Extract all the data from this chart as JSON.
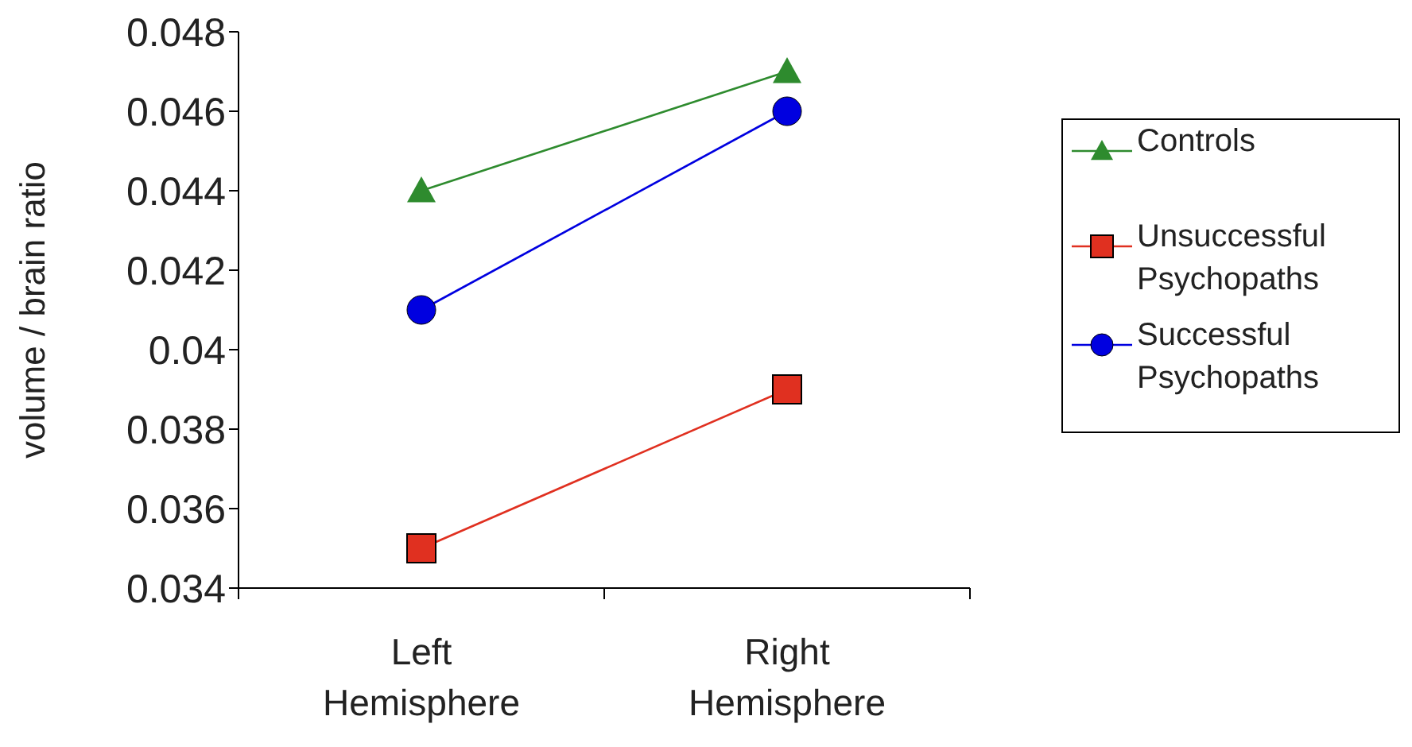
{
  "chart_data": {
    "type": "line",
    "ylabel": "volume / brain ratio",
    "categories": [
      "Left Hemisphere",
      "Right Hemisphere"
    ],
    "ylim": [
      0.034,
      0.048
    ],
    "yticks": [
      {
        "value": 0.034,
        "label": "0.034"
      },
      {
        "value": 0.036,
        "label": "0.036"
      },
      {
        "value": 0.038,
        "label": "0.038"
      },
      {
        "value": 0.04,
        "label": "0.04"
      },
      {
        "value": 0.042,
        "label": "0.042"
      },
      {
        "value": 0.044,
        "label": "0.044"
      },
      {
        "value": 0.046,
        "label": "0.046"
      },
      {
        "value": 0.048,
        "label": "0.048"
      }
    ],
    "series": [
      {
        "name": "Controls",
        "color": "#2e8b2e",
        "marker": "triangle",
        "values": [
          0.044,
          0.047
        ]
      },
      {
        "name": "Unsuccessful Psychopaths",
        "color": "#e03020",
        "marker": "square",
        "values": [
          0.035,
          0.039
        ]
      },
      {
        "name": "Successful Psychopaths",
        "color": "#0000e0",
        "marker": "circle",
        "values": [
          0.041,
          0.046
        ]
      }
    ],
    "grid": false,
    "legend": "right"
  }
}
